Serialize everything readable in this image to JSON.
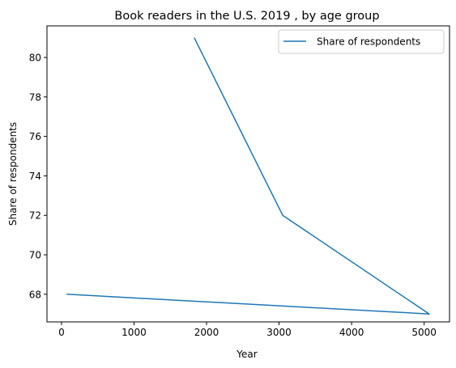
{
  "chart_data": {
    "type": "line",
    "title": "Book readers in the U.S. 2019 , by age group",
    "xlabel": "Year",
    "ylabel": "Share of respondents",
    "xlim": [
      -200,
      5350
    ],
    "ylim": [
      66.6,
      81.6
    ],
    "xticks": [
      0,
      1000,
      2000,
      3000,
      4000,
      5000
    ],
    "yticks": [
      68,
      70,
      72,
      74,
      76,
      78,
      80
    ],
    "grid": false,
    "legend_position": "upper right",
    "series": [
      {
        "name": "Share of respondents",
        "color": "#1f77b4",
        "x": [
          1830,
          3050,
          5070,
          70
        ],
        "y": [
          81,
          72,
          67,
          68
        ]
      }
    ]
  }
}
